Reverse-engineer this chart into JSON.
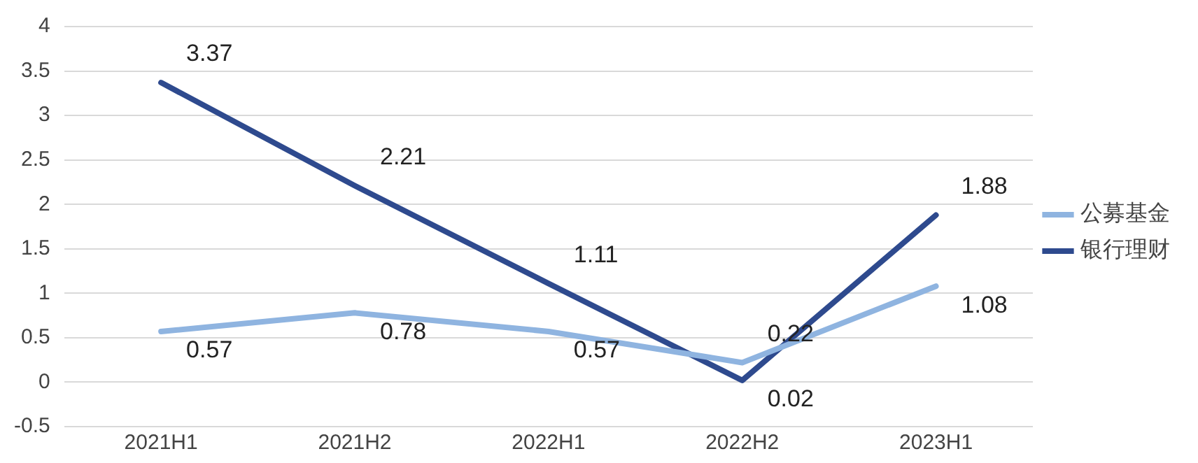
{
  "chart_data": {
    "type": "line",
    "categories": [
      "2021H1",
      "2021H2",
      "2022H1",
      "2022H2",
      "2023H1"
    ],
    "series": [
      {
        "name": "公募基金",
        "color": "#8fb4e0",
        "values": [
          0.57,
          0.78,
          0.57,
          0.22,
          1.08
        ]
      },
      {
        "name": "银行理财",
        "color": "#2e4a8e",
        "values": [
          3.37,
          2.21,
          1.11,
          0.02,
          1.88
        ]
      }
    ],
    "ylim": [
      -0.5,
      4
    ],
    "yticks": [
      -0.5,
      0,
      0.5,
      1,
      1.5,
      2,
      2.5,
      3,
      3.5,
      4
    ],
    "grid": "y",
    "legend": "right",
    "data_labels": true,
    "marker": "none",
    "line_style": "solid"
  }
}
